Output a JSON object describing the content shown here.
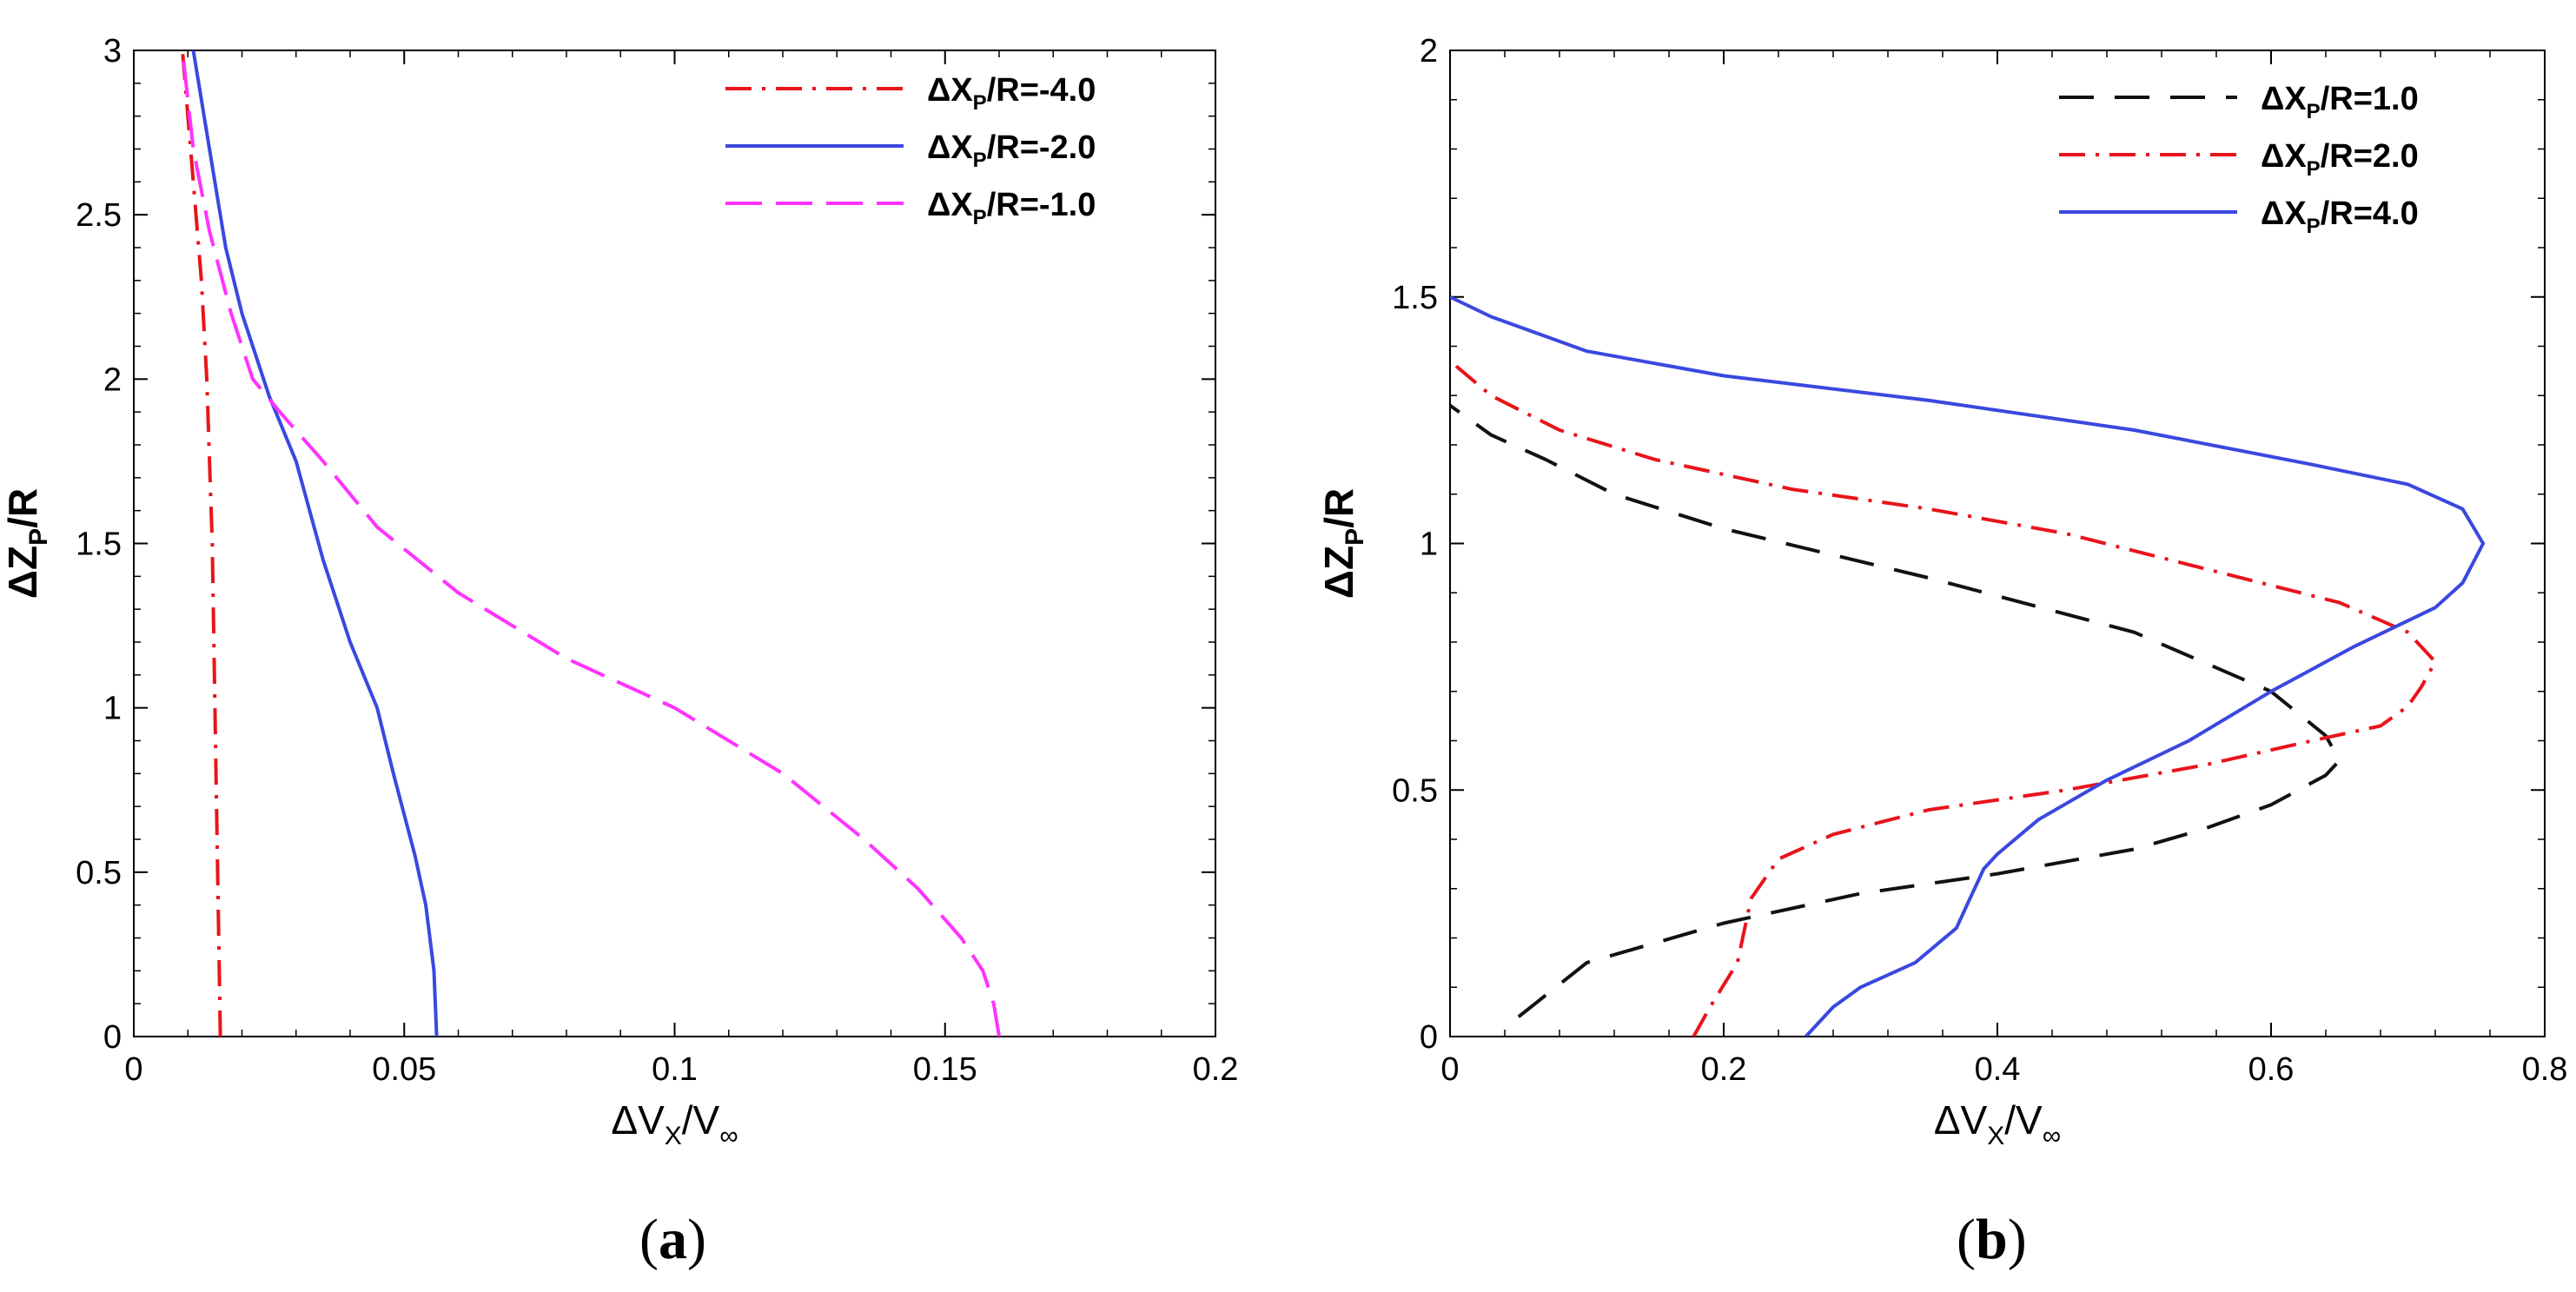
{
  "chart_data": [
    {
      "type": "line",
      "panel_label": "a",
      "xlabel": {
        "delta": "Δ",
        "main": "V",
        "sub": "X",
        "rest": "/V",
        "rest_sub": "∞"
      },
      "ylabel": {
        "delta": "Δ",
        "main": "Z",
        "sub": "P",
        "rest": "/R"
      },
      "xlim": [
        0,
        0.2
      ],
      "ylim": [
        0,
        3
      ],
      "x_ticks": [
        "0",
        "0.05",
        "0.1",
        "0.15",
        "0.2"
      ],
      "y_ticks": [
        "0",
        "0.5",
        "1",
        "1.5",
        "2",
        "2.5",
        "3"
      ],
      "legend_position": "top-right",
      "series": [
        {
          "name": "ΔXP/R=-4.0",
          "legend_prefix": "ΔX",
          "legend_sub": "P",
          "legend_suffix": "/R=-4.0",
          "color": "#e8141b",
          "dash": "dashdot",
          "points": [
            [
              0.016,
              0
            ],
            [
              0.0158,
              0.2
            ],
            [
              0.0155,
              0.5
            ],
            [
              0.015,
              1.0
            ],
            [
              0.0145,
              1.5
            ],
            [
              0.0135,
              2.0
            ],
            [
              0.0125,
              2.3
            ],
            [
              0.011,
              2.6
            ],
            [
              0.009,
              3.0
            ]
          ]
        },
        {
          "name": "ΔXP/R=-2.0",
          "legend_prefix": "ΔX",
          "legend_sub": "P",
          "legend_suffix": "/R=-2.0",
          "color": "#3a48e0",
          "dash": "solid",
          "points": [
            [
              0.056,
              0
            ],
            [
              0.0555,
              0.2
            ],
            [
              0.054,
              0.4
            ],
            [
              0.052,
              0.55
            ],
            [
              0.048,
              0.8
            ],
            [
              0.045,
              1.0
            ],
            [
              0.04,
              1.2
            ],
            [
              0.035,
              1.45
            ],
            [
              0.03,
              1.75
            ],
            [
              0.025,
              1.95
            ],
            [
              0.02,
              2.2
            ],
            [
              0.017,
              2.4
            ],
            [
              0.014,
              2.7
            ],
            [
              0.012,
              2.9
            ],
            [
              0.011,
              3.0
            ]
          ]
        },
        {
          "name": "ΔXP/R=-1.0",
          "legend_prefix": "ΔX",
          "legend_sub": "P",
          "legend_suffix": "/R=-1.0",
          "color": "#ff33ff",
          "dash": "dash",
          "points": [
            [
              0.16,
              0
            ],
            [
              0.159,
              0.1
            ],
            [
              0.157,
              0.2
            ],
            [
              0.153,
              0.3
            ],
            [
              0.145,
              0.45
            ],
            [
              0.135,
              0.6
            ],
            [
              0.12,
              0.8
            ],
            [
              0.1,
              1.0
            ],
            [
              0.08,
              1.15
            ],
            [
              0.06,
              1.35
            ],
            [
              0.045,
              1.55
            ],
            [
              0.035,
              1.75
            ],
            [
              0.027,
              1.9
            ],
            [
              0.022,
              2.0
            ],
            [
              0.018,
              2.2
            ],
            [
              0.014,
              2.45
            ],
            [
              0.011,
              2.7
            ],
            [
              0.009,
              3.0
            ]
          ]
        }
      ]
    },
    {
      "type": "line",
      "panel_label": "b",
      "xlabel": {
        "delta": "Δ",
        "main": "V",
        "sub": "X",
        "rest": "/V",
        "rest_sub": "∞"
      },
      "ylabel": {
        "delta": "Δ",
        "main": "Z",
        "sub": "P",
        "rest": "/R"
      },
      "xlim": [
        0,
        0.8
      ],
      "ylim": [
        0,
        2
      ],
      "x_ticks": [
        "0",
        "0.2",
        "0.4",
        "0.6",
        "0.8"
      ],
      "y_ticks": [
        "0",
        "0.5",
        "1",
        "1.5",
        "2"
      ],
      "legend_position": "top-right",
      "series": [
        {
          "name": "ΔXP/R=1.0",
          "legend_prefix": "ΔX",
          "legend_sub": "P",
          "legend_suffix": "/R=1.0",
          "color": "#111111",
          "dash": "longdash",
          "points": [
            [
              0.05,
              0.04
            ],
            [
              0.1,
              0.15
            ],
            [
              0.2,
              0.23
            ],
            [
              0.3,
              0.29
            ],
            [
              0.4,
              0.33
            ],
            [
              0.5,
              0.38
            ],
            [
              0.55,
              0.42
            ],
            [
              0.6,
              0.47
            ],
            [
              0.64,
              0.53
            ],
            [
              0.65,
              0.56
            ],
            [
              0.64,
              0.61
            ],
            [
              0.6,
              0.7
            ],
            [
              0.5,
              0.82
            ],
            [
              0.35,
              0.93
            ],
            [
              0.2,
              1.03
            ],
            [
              0.12,
              1.1
            ],
            [
              0.07,
              1.17
            ],
            [
              0.03,
              1.22
            ],
            [
              0.0,
              1.28
            ]
          ]
        },
        {
          "name": "ΔXP/R=2.0",
          "legend_prefix": "ΔX",
          "legend_sub": "P",
          "legend_suffix": "/R=2.0",
          "color": "#e8141b",
          "dash": "dashdot",
          "points": [
            [
              0.178,
              0
            ],
            [
              0.19,
              0.06
            ],
            [
              0.21,
              0.15
            ],
            [
              0.22,
              0.28
            ],
            [
              0.24,
              0.36
            ],
            [
              0.28,
              0.41
            ],
            [
              0.35,
              0.46
            ],
            [
              0.45,
              0.5
            ],
            [
              0.55,
              0.55
            ],
            [
              0.63,
              0.6
            ],
            [
              0.68,
              0.63
            ],
            [
              0.7,
              0.67
            ],
            [
              0.71,
              0.71
            ],
            [
              0.72,
              0.76
            ],
            [
              0.7,
              0.82
            ],
            [
              0.65,
              0.88
            ],
            [
              0.55,
              0.95
            ],
            [
              0.45,
              1.02
            ],
            [
              0.35,
              1.07
            ],
            [
              0.25,
              1.11
            ],
            [
              0.15,
              1.17
            ],
            [
              0.08,
              1.23
            ],
            [
              0.03,
              1.3
            ],
            [
              0.0,
              1.37
            ]
          ]
        },
        {
          "name": "ΔXP/R=4.0",
          "legend_prefix": "ΔX",
          "legend_sub": "P",
          "legend_suffix": "/R=4.0",
          "color": "#3a48e0",
          "dash": "solid",
          "points": [
            [
              0.26,
              0
            ],
            [
              0.28,
              0.06
            ],
            [
              0.3,
              0.1
            ],
            [
              0.34,
              0.15
            ],
            [
              0.37,
              0.22
            ],
            [
              0.38,
              0.28
            ],
            [
              0.39,
              0.34
            ],
            [
              0.4,
              0.37
            ],
            [
              0.43,
              0.44
            ],
            [
              0.48,
              0.52
            ],
            [
              0.54,
              0.6
            ],
            [
              0.6,
              0.7
            ],
            [
              0.66,
              0.79
            ],
            [
              0.72,
              0.87
            ],
            [
              0.74,
              0.92
            ],
            [
              0.755,
              1.0
            ],
            [
              0.74,
              1.07
            ],
            [
              0.7,
              1.12
            ],
            [
              0.63,
              1.16
            ],
            [
              0.5,
              1.23
            ],
            [
              0.35,
              1.29
            ],
            [
              0.2,
              1.34
            ],
            [
              0.1,
              1.39
            ],
            [
              0.03,
              1.46
            ],
            [
              0.0,
              1.5
            ]
          ]
        }
      ]
    }
  ]
}
